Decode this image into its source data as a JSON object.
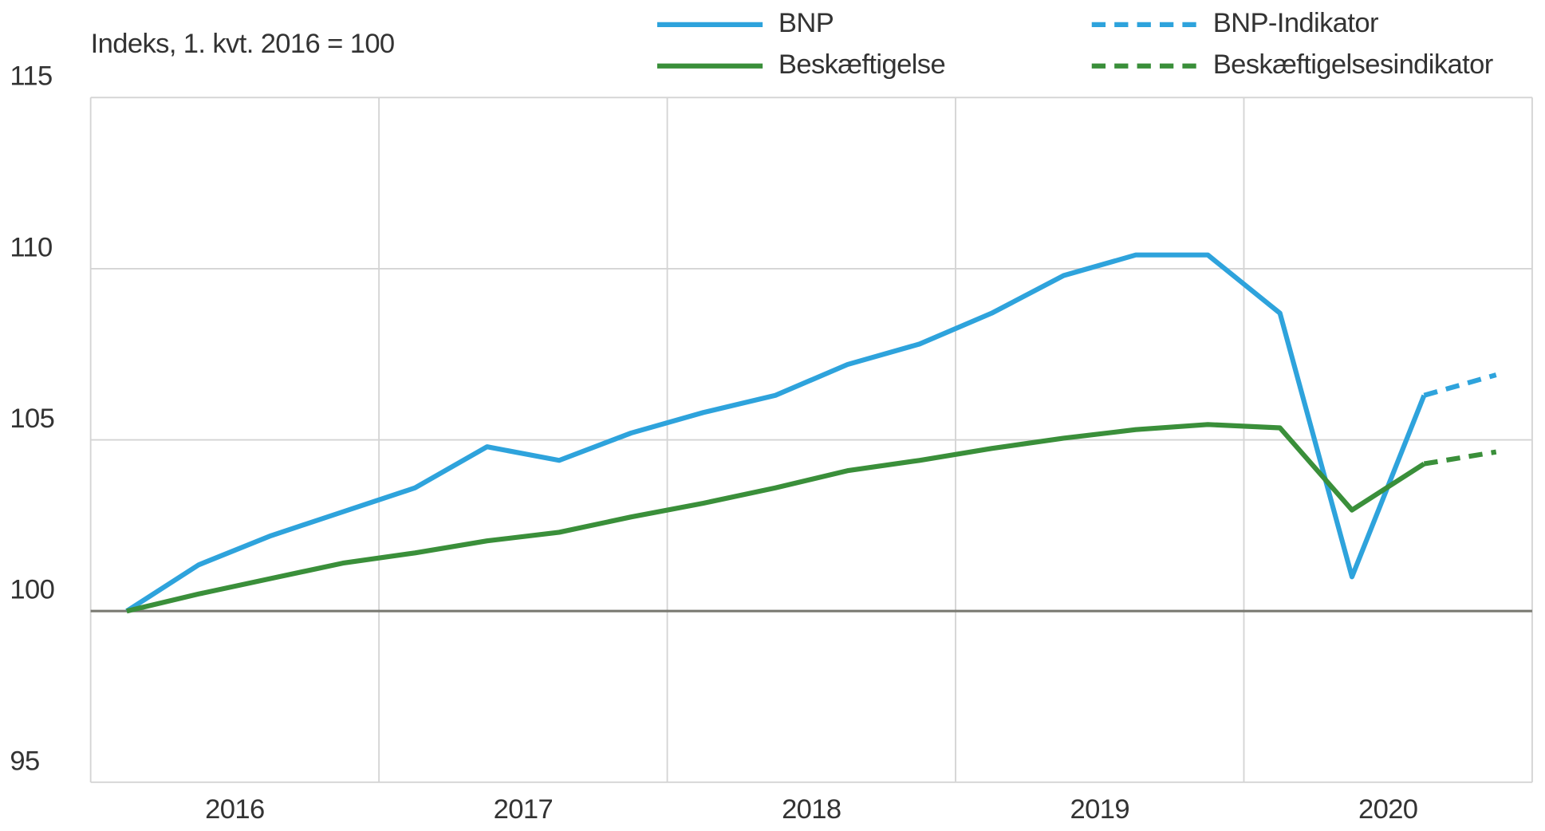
{
  "chart_data": {
    "type": "line",
    "subtitle": "Indeks, 1. kvt. 2016  = 100",
    "categories": [
      "2016",
      null,
      null,
      null,
      "2017",
      null,
      null,
      null,
      "2018",
      null,
      null,
      null,
      "2019",
      null,
      null,
      null,
      "2020",
      null,
      null,
      null
    ],
    "series": [
      {
        "name": "BNP",
        "color": "#2ea3dc",
        "dashed": false,
        "values": [
          100,
          101.35,
          102.2,
          102.9,
          103.6,
          104.8,
          104.4,
          105.2,
          105.8,
          106.3,
          107.2,
          107.8,
          108.7,
          109.8,
          110.4,
          110.4,
          108.7,
          101.0,
          106.3,
          null
        ]
      },
      {
        "name": "Beskæftigelse",
        "color": "#3a8f3a",
        "dashed": false,
        "values": [
          100,
          100.5,
          100.95,
          101.4,
          101.7,
          102.05,
          102.3,
          102.75,
          103.15,
          103.6,
          104.1,
          104.4,
          104.75,
          105.05,
          105.3,
          105.45,
          105.35,
          102.95,
          104.3,
          null
        ]
      },
      {
        "name": "BNP-Indikator",
        "color": "#2ea3dc",
        "dashed": true,
        "values": [
          null,
          null,
          null,
          null,
          null,
          null,
          null,
          null,
          null,
          null,
          null,
          null,
          null,
          null,
          null,
          null,
          null,
          null,
          106.3,
          106.9
        ]
      },
      {
        "name": "Beskæftigelsesindikator",
        "color": "#3a8f3a",
        "dashed": true,
        "values": [
          null,
          null,
          null,
          null,
          null,
          null,
          null,
          null,
          null,
          null,
          null,
          null,
          null,
          null,
          null,
          null,
          null,
          null,
          104.3,
          104.65
        ]
      }
    ],
    "ylim": [
      95,
      115
    ],
    "yticks": [
      95,
      100,
      105,
      110,
      115
    ],
    "reference_line": 100,
    "grid": true
  }
}
